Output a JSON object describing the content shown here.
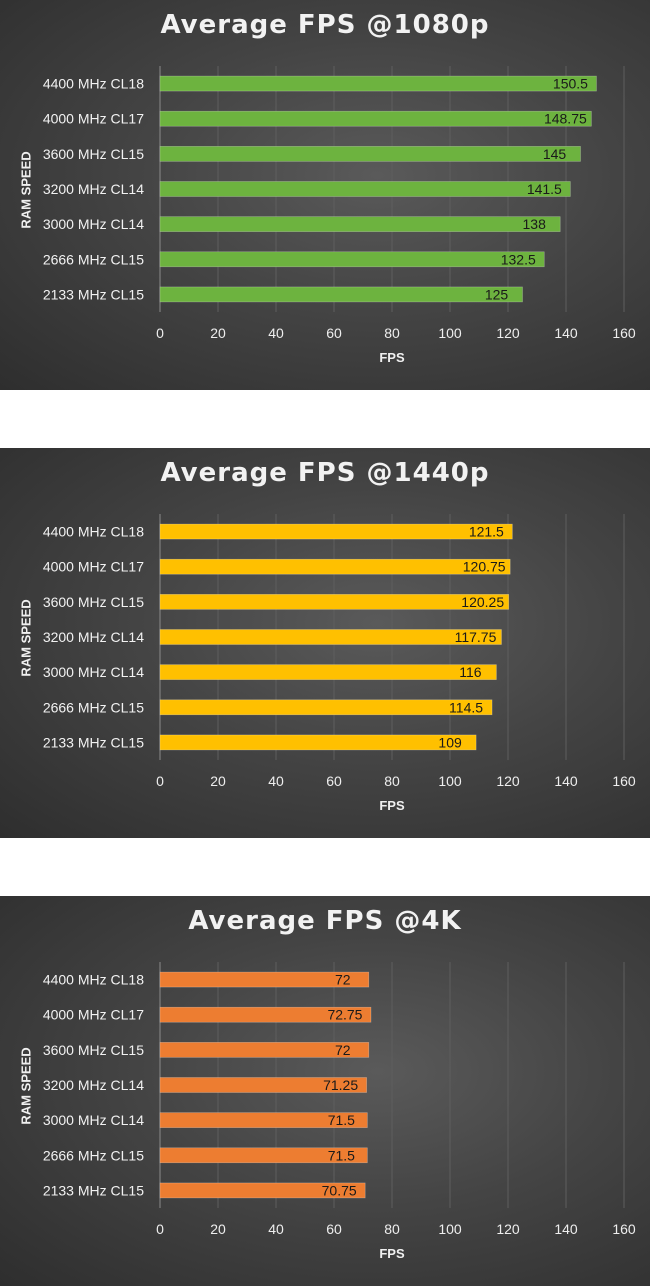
{
  "chart_data": [
    {
      "type": "bar",
      "orientation": "horizontal",
      "title": "Average FPS @1080p",
      "xlabel": "FPS",
      "ylabel": "RAM SPEED",
      "xlim": [
        0,
        160
      ],
      "xticks": [
        0,
        20,
        40,
        60,
        80,
        100,
        120,
        140,
        160
      ],
      "categories": [
        "4400 MHz CL18",
        "4000 MHz CL17",
        "3600 MHz CL15",
        "3200 MHz CL14",
        "3000 MHz CL14",
        "2666 MHz CL15",
        "2133 MHz CL15"
      ],
      "values": [
        150.5,
        148.75,
        145,
        141.5,
        138,
        132.5,
        125
      ],
      "labels": [
        "150.5",
        "148.75",
        "145",
        "141.5",
        "138",
        "132.5",
        "125"
      ],
      "color": "#6db33f",
      "grid": true
    },
    {
      "type": "bar",
      "orientation": "horizontal",
      "title": "Average FPS @1440p",
      "xlabel": "FPS",
      "ylabel": "RAM SPEED",
      "xlim": [
        0,
        160
      ],
      "xticks": [
        0,
        20,
        40,
        60,
        80,
        100,
        120,
        140,
        160
      ],
      "categories": [
        "4400 MHz CL18",
        "4000 MHz CL17",
        "3600 MHz CL15",
        "3200 MHz CL14",
        "3000 MHz CL14",
        "2666 MHz CL15",
        "2133 MHz CL15"
      ],
      "values": [
        121.5,
        120.75,
        120.25,
        117.75,
        116,
        114.5,
        109
      ],
      "labels": [
        "121.5",
        "120.75",
        "120.25",
        "117.75",
        "116",
        "114.5",
        "109"
      ],
      "color": "#ffc000",
      "grid": true
    },
    {
      "type": "bar",
      "orientation": "horizontal",
      "title": "Average FPS @4K",
      "xlabel": "FPS",
      "ylabel": "RAM SPEED",
      "xlim": [
        0,
        160
      ],
      "xticks": [
        0,
        20,
        40,
        60,
        80,
        100,
        120,
        140,
        160
      ],
      "categories": [
        "4400 MHz CL18",
        "4000 MHz CL17",
        "3600 MHz CL15",
        "3200 MHz CL14",
        "3000 MHz CL14",
        "2666 MHz CL15",
        "2133 MHz CL15"
      ],
      "values": [
        72,
        72.75,
        72,
        71.25,
        71.5,
        71.5,
        70.75
      ],
      "labels": [
        "72",
        "72.75",
        "72",
        "71.25",
        "71.5",
        "71.5",
        "70.75"
      ],
      "color": "#ed7d31",
      "grid": true
    }
  ]
}
